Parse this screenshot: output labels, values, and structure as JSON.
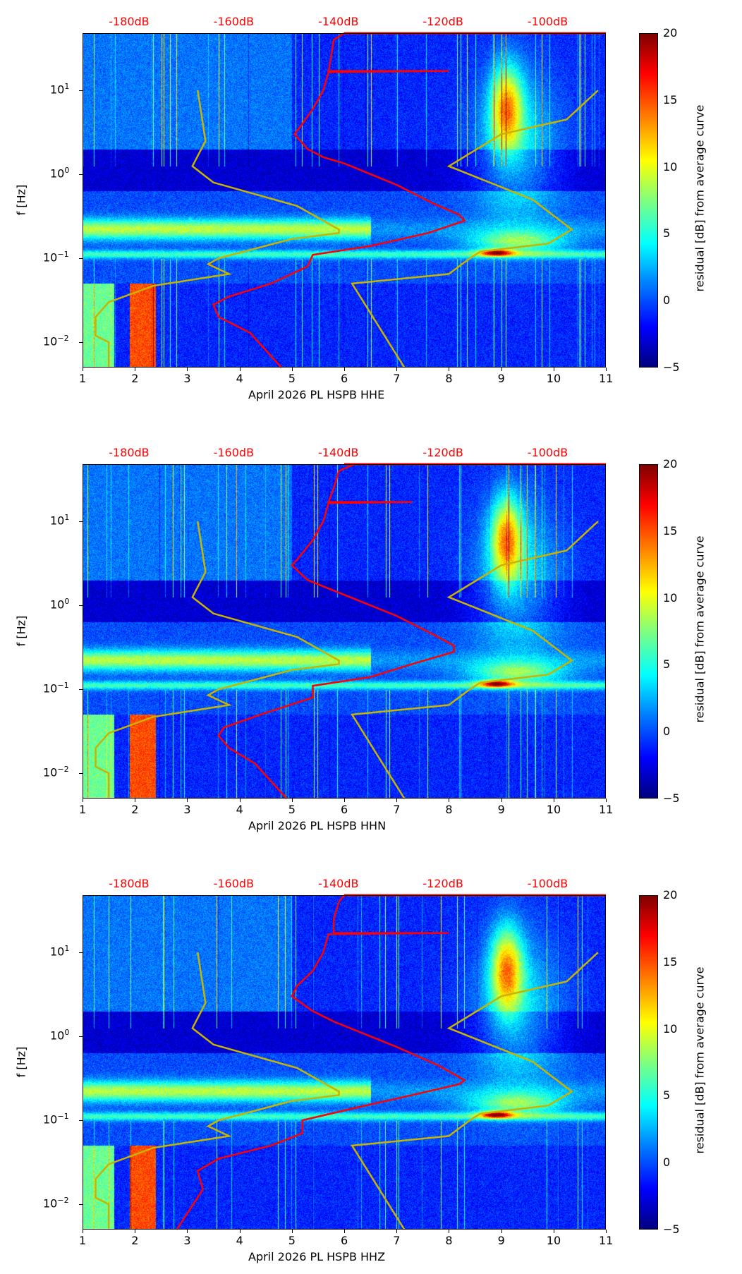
{
  "chart_data": [
    {
      "type": "heatmap",
      "title": "",
      "xlabel": "April 2026 PL HSPB  HHE",
      "ylabel": "f [Hz]",
      "colorbar_label": "residual [dB] from average curve",
      "xlim": [
        1,
        11
      ],
      "ylim": [
        0.005,
        48
      ],
      "yscale": "log",
      "clim": [
        -5,
        20
      ],
      "red_curve": [
        [
          6,
          48
        ],
        [
          5.8,
          40
        ],
        [
          5.75,
          25
        ],
        [
          5.7,
          17
        ],
        [
          8,
          17
        ],
        [
          5.7,
          16.5
        ],
        [
          5.6,
          10
        ],
        [
          5.4,
          6
        ],
        [
          5.2,
          4
        ],
        [
          5.05,
          3
        ],
        [
          5.3,
          2
        ],
        [
          5.6,
          1.6
        ],
        [
          6,
          1.35
        ],
        [
          7,
          0.75
        ],
        [
          7.7,
          0.45
        ],
        [
          8.2,
          0.33
        ],
        [
          8.3,
          0.28
        ],
        [
          7.6,
          0.2
        ],
        [
          6.5,
          0.14
        ],
        [
          5.4,
          0.11
        ],
        [
          5.3,
          0.08
        ],
        [
          4.6,
          0.05
        ],
        [
          3.8,
          0.035
        ],
        [
          3.5,
          0.028
        ],
        [
          3.6,
          0.02
        ],
        [
          4.2,
          0.013
        ],
        [
          4.8,
          0.005
        ]
      ]
    },
    {
      "type": "heatmap",
      "title": "",
      "xlabel": "April 2026 PL HSPB  HHN",
      "ylabel": "f [Hz]",
      "colorbar_label": "residual [dB] from average curve",
      "xlim": [
        1,
        11
      ],
      "ylim": [
        0.005,
        48
      ],
      "yscale": "log",
      "clim": [
        -5,
        20
      ],
      "red_curve": [
        [
          6.2,
          48
        ],
        [
          5.9,
          40
        ],
        [
          5.8,
          25
        ],
        [
          5.7,
          17
        ],
        [
          7.3,
          17
        ],
        [
          5.7,
          16.5
        ],
        [
          5.6,
          10
        ],
        [
          5.4,
          6
        ],
        [
          5.1,
          3.5
        ],
        [
          5.0,
          3
        ],
        [
          5.3,
          2
        ],
        [
          5.8,
          1.5
        ],
        [
          7,
          0.75
        ],
        [
          7.7,
          0.45
        ],
        [
          8.1,
          0.33
        ],
        [
          8.1,
          0.28
        ],
        [
          7.3,
          0.2
        ],
        [
          6.5,
          0.14
        ],
        [
          5.4,
          0.11
        ],
        [
          5.4,
          0.08
        ],
        [
          4.4,
          0.05
        ],
        [
          3.7,
          0.035
        ],
        [
          3.6,
          0.028
        ],
        [
          3.8,
          0.02
        ],
        [
          4.3,
          0.013
        ],
        [
          4.9,
          0.005
        ]
      ]
    },
    {
      "type": "heatmap",
      "title": "",
      "xlabel": "April 2026 PL HSPB  HHZ",
      "ylabel": "f [Hz]",
      "colorbar_label": "residual [dB] from average curve",
      "xlim": [
        1,
        11
      ],
      "ylim": [
        0.005,
        48
      ],
      "yscale": "log",
      "clim": [
        -5,
        20
      ],
      "red_curve": [
        [
          6,
          48
        ],
        [
          5.9,
          40
        ],
        [
          5.8,
          25
        ],
        [
          5.8,
          17
        ],
        [
          8,
          17
        ],
        [
          5.7,
          16.5
        ],
        [
          5.6,
          10
        ],
        [
          5.4,
          6
        ],
        [
          5.1,
          4
        ],
        [
          5.0,
          3
        ],
        [
          5.4,
          2
        ],
        [
          5.8,
          1.5
        ],
        [
          7,
          0.75
        ],
        [
          7.8,
          0.45
        ],
        [
          8.3,
          0.3
        ],
        [
          8.2,
          0.27
        ],
        [
          7.3,
          0.2
        ],
        [
          6.2,
          0.14
        ],
        [
          5.2,
          0.1
        ],
        [
          5.2,
          0.07
        ],
        [
          4.6,
          0.05
        ],
        [
          3.6,
          0.035
        ],
        [
          3.2,
          0.025
        ],
        [
          3.3,
          0.015
        ],
        [
          2.8,
          0.005
        ]
      ]
    }
  ],
  "shared": {
    "x_ticks": [
      "1",
      "2",
      "3",
      "4",
      "5",
      "6",
      "7",
      "8",
      "9",
      "10",
      "11"
    ],
    "y_ticks": [
      {
        "value": 10,
        "label": "10",
        "exp": "1"
      },
      {
        "value": 1,
        "label": "10",
        "exp": "0"
      },
      {
        "value": 0.1,
        "label": "10",
        "exp": "−1"
      },
      {
        "value": 0.01,
        "label": "10",
        "exp": "−2"
      }
    ],
    "top_ticks": [
      {
        "x": 2,
        "label": "-180dB"
      },
      {
        "x": 4,
        "label": "-160dB"
      },
      {
        "x": 6,
        "label": "-140dB"
      },
      {
        "x": 8,
        "label": "-120dB"
      },
      {
        "x": 10,
        "label": "-100dB"
      }
    ],
    "cbar_ticks": [
      "20",
      "15",
      "10",
      "5",
      "0",
      "−5"
    ],
    "low_noise_model": [
      [
        3.2,
        10
      ],
      [
        3.35,
        2.5
      ],
      [
        3.1,
        1.25
      ],
      [
        3.5,
        0.8
      ],
      [
        5.1,
        0.42
      ],
      [
        5.9,
        0.22
      ],
      [
        5.9,
        0.2
      ],
      [
        5,
        0.17
      ],
      [
        3.6,
        0.1
      ],
      [
        3.4,
        0.085
      ],
      [
        3.8,
        0.065
      ],
      [
        2.35,
        0.047
      ],
      [
        1.5,
        0.03
      ],
      [
        1.25,
        0.02
      ],
      [
        1.25,
        0.012
      ],
      [
        1.5,
        0.01
      ],
      [
        1.5,
        0.005
      ]
    ],
    "high_noise_model": [
      [
        10.85,
        10
      ],
      [
        10.25,
        4.5
      ],
      [
        9,
        3
      ],
      [
        8,
        1.25
      ],
      [
        9.6,
        0.5
      ],
      [
        10.35,
        0.22
      ],
      [
        9.9,
        0.15
      ],
      [
        8.6,
        0.12
      ],
      [
        8.4,
        0.1
      ],
      [
        8,
        0.065
      ],
      [
        6.15,
        0.05
      ],
      [
        7.15,
        0.005
      ]
    ],
    "colors": {
      "red": "#ff0000",
      "yellow": "#c8b400"
    }
  }
}
